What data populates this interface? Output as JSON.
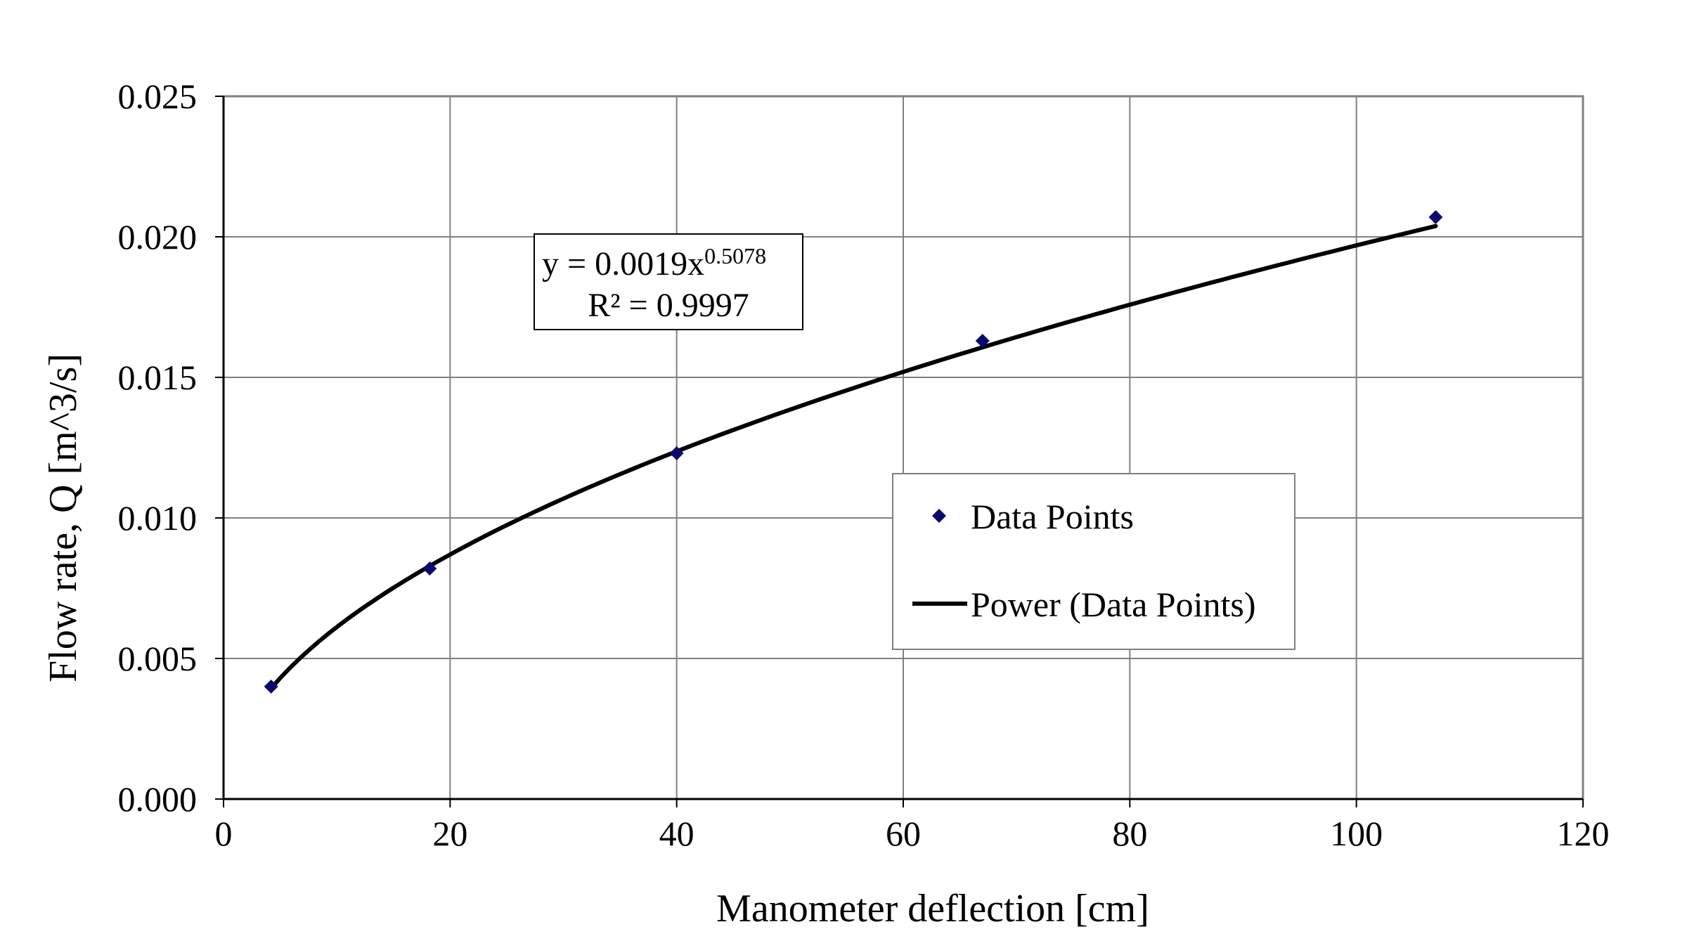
{
  "chart_data": {
    "type": "scatter",
    "xlabel": "Manometer deflection [cm]",
    "ylabel": "Flow rate, Q [m^3/s]",
    "xlim": [
      0,
      120
    ],
    "ylim": [
      0,
      0.025
    ],
    "x_ticks": [
      "0",
      "20",
      "40",
      "60",
      "80",
      "100",
      "120"
    ],
    "y_ticks": [
      "0.000",
      "0.005",
      "0.010",
      "0.015",
      "0.020",
      "0.025"
    ],
    "grid": true,
    "legend_position": "center-right",
    "series": [
      {
        "name": "Data Points",
        "kind": "scatter",
        "marker": "diamond",
        "color": "#0a0a6e",
        "x": [
          4.2,
          18.2,
          40.0,
          67.0,
          107.0
        ],
        "y": [
          0.004,
          0.0082,
          0.0123,
          0.0163,
          0.0207
        ]
      },
      {
        "name": "Power (Data Points)",
        "kind": "trendline",
        "color": "#000000",
        "coefficient": 0.0019,
        "exponent": 0.5078,
        "x_range": [
          4.2,
          107.0
        ]
      }
    ],
    "equation": {
      "main": "y = 0.0019x",
      "exponent": "0.5078",
      "r_squared": "R² = 0.9997"
    }
  }
}
